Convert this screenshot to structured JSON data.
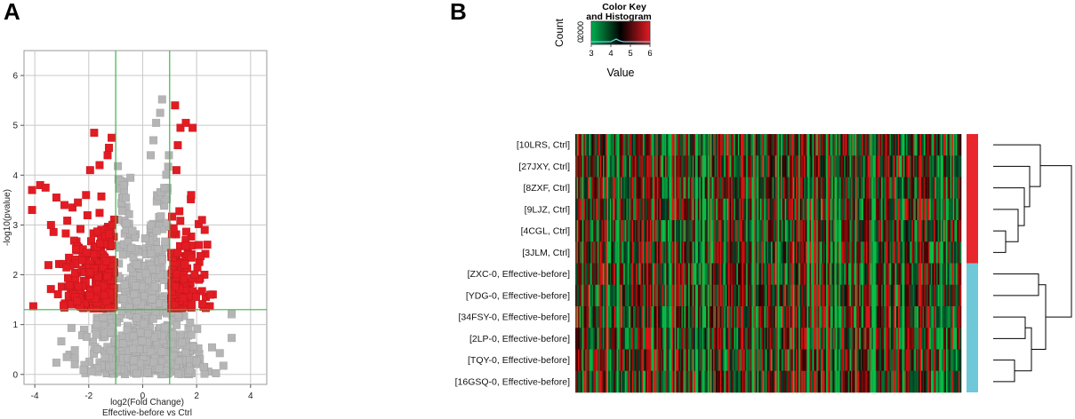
{
  "panels": {
    "a": "A",
    "b": "B"
  },
  "chart_data": [
    {
      "type": "scatter",
      "panel": "A",
      "xlabel": "log2(Fold Change)",
      "subtitle": "Effective-before vs Ctrl",
      "ylabel": "-log10(pvalue)",
      "xlim": [
        -4.4,
        4.6
      ],
      "ylim": [
        -0.2,
        6.5
      ],
      "xticks": [
        -4,
        -2,
        0,
        2,
        4
      ],
      "yticks": [
        0,
        1,
        2,
        3,
        4,
        5,
        6
      ],
      "grid": true,
      "thresholds": {
        "fold_change_log2": [
          -1,
          1
        ],
        "pvalue_neglog10": 1.3
      },
      "colors": {
        "significant": "#e31b23",
        "not_significant": "#b5b5b5",
        "threshold": "#3bb54a"
      },
      "highlight_points": [
        [
          -4.1,
          3.7
        ],
        [
          -4.1,
          3.3
        ],
        [
          -3.8,
          3.8
        ],
        [
          -3.6,
          3.75
        ],
        [
          -3.4,
          3.0
        ],
        [
          -3.2,
          3.55
        ],
        [
          -2.9,
          3.4
        ],
        [
          -2.6,
          3.35
        ],
        [
          -2.4,
          3.45
        ],
        [
          -2.1,
          3.6
        ],
        [
          -1.95,
          4.1
        ],
        [
          -1.8,
          4.85
        ],
        [
          -1.6,
          4.2
        ],
        [
          -1.3,
          4.4
        ],
        [
          -1.25,
          4.55
        ],
        [
          -1.15,
          4.75
        ],
        [
          1.2,
          5.4
        ],
        [
          1.4,
          4.95
        ],
        [
          1.6,
          5.05
        ],
        [
          1.85,
          4.95
        ],
        [
          1.3,
          4.6
        ],
        [
          1.25,
          4.1
        ],
        [
          2.2,
          3.1
        ],
        [
          2.3,
          2.9
        ],
        [
          1.8,
          3.6
        ]
      ],
      "significant_count": 420,
      "not_significant_count": 780
    },
    {
      "type": "heatmap",
      "panel": "B",
      "color_key": {
        "title": "Color Key",
        "subtitle": "and Histogram",
        "xlabel": "Value",
        "ylabel": "Count",
        "xticks": [
          "3",
          "4",
          "5",
          "6"
        ],
        "yticks": [
          "0",
          "2000"
        ],
        "range": [
          3,
          6
        ],
        "colors": [
          "#00b050",
          "#000000",
          "#e31b23"
        ]
      },
      "rows": [
        "[10LRS, Ctrl]",
        "[27JXY, Ctrl]",
        "[8ZXF, Ctrl]",
        "[9LJZ, Ctrl]",
        "[4CGL, Ctrl]",
        "[3JLM, Ctrl]",
        "[ZXC-0, Effective-before]",
        "[YDG-0, Effective-before]",
        "[34FSY-0, Effective-before]",
        "[2LP-0, Effective-before]",
        "[TQY-0, Effective-before]",
        "[16GSQ-0, Effective-before]"
      ],
      "groups": [
        {
          "rows": [
            0,
            5
          ],
          "color": "#e8262c"
        },
        {
          "rows": [
            6,
            11
          ],
          "color": "#6fc8d8"
        }
      ],
      "columns_count": 280,
      "dendrogram_color": "#000000"
    }
  ]
}
